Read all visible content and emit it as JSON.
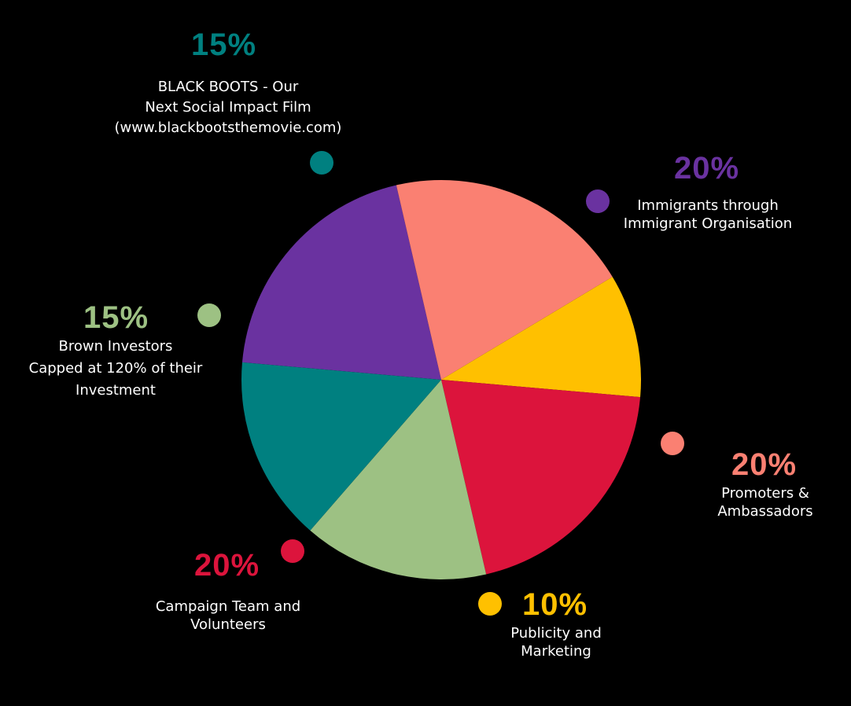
{
  "chart_data": {
    "type": "pie",
    "title": "",
    "slices": [
      {
        "percent_label": "20%",
        "value": 20,
        "label_lines": [
          "Immigrants through",
          "Immigrant Organisation"
        ],
        "color": "#6a32a0"
      },
      {
        "percent_label": "20%",
        "value": 20,
        "label_lines": [
          "Promoters &",
          "Ambassadors"
        ],
        "color": "#fa8072"
      },
      {
        "percent_label": "10%",
        "value": 10,
        "label_lines": [
          "Publicity and",
          "Marketing"
        ],
        "color": "#ffc000"
      },
      {
        "percent_label": "20%",
        "value": 20,
        "label_lines": [
          "Campaign Team and",
          "Volunteers"
        ],
        "color": "#dc143c"
      },
      {
        "percent_label": "15%",
        "value": 15,
        "label_lines": [
          "Brown Investors",
          "Capped at 120% of their",
          "Investment"
        ],
        "color": "#9dc183"
      },
      {
        "percent_label": "15%",
        "value": 15,
        "label_lines": [
          "BLACK BOOTS - Our",
          "Next Social Impact Film",
          "(www.blackbootsthemovie.com)"
        ],
        "color": "#008080"
      }
    ]
  }
}
